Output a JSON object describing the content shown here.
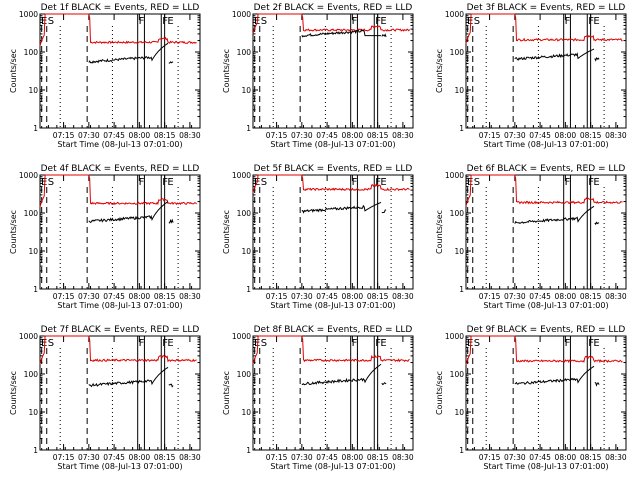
{
  "chart_data": {
    "type": "line",
    "title_template": "Det {id} BLACK = Events, RED = LLD",
    "xlabel": "Start Time (08-Jul-13 07:01:00)",
    "ylabel": "Counts/sec",
    "y_scale": "log",
    "ylim": [
      1,
      1000
    ],
    "xlim_minutes": [
      0,
      95
    ],
    "y_ticks": [
      "1",
      "10",
      "100",
      "1000"
    ],
    "x_ticks": [
      "07:15",
      "07:30",
      "07:45",
      "08:00",
      "08:15",
      "08:30"
    ],
    "flags": [
      "E",
      "S",
      "F",
      "F",
      "E"
    ],
    "legend": {
      "black": "Events",
      "red": "LLD"
    },
    "colors": {
      "events": "#000000",
      "lld": "#e00000",
      "axes": "#000000"
    },
    "panels": [
      {
        "det": "1f",
        "red_level": 180,
        "black_level": 55,
        "black_peak": 170
      },
      {
        "det": "2f",
        "red_level": 380,
        "black_level": 270,
        "black_peak": 270
      },
      {
        "det": "3f",
        "red_level": 210,
        "black_level": 65,
        "black_peak": 120
      },
      {
        "det": "4f",
        "red_level": 180,
        "black_level": 60,
        "black_peak": 200
      },
      {
        "det": "5f",
        "red_level": 420,
        "black_level": 110,
        "black_peak": 190
      },
      {
        "det": "6f",
        "red_level": 190,
        "black_level": 55,
        "black_peak": 150
      },
      {
        "det": "7f",
        "red_level": 230,
        "black_level": 50,
        "black_peak": 150
      },
      {
        "det": "8f",
        "red_level": 230,
        "black_level": 55,
        "black_peak": 180
      },
      {
        "det": "9f",
        "red_level": 220,
        "black_level": 55,
        "black_peak": 160
      }
    ]
  }
}
